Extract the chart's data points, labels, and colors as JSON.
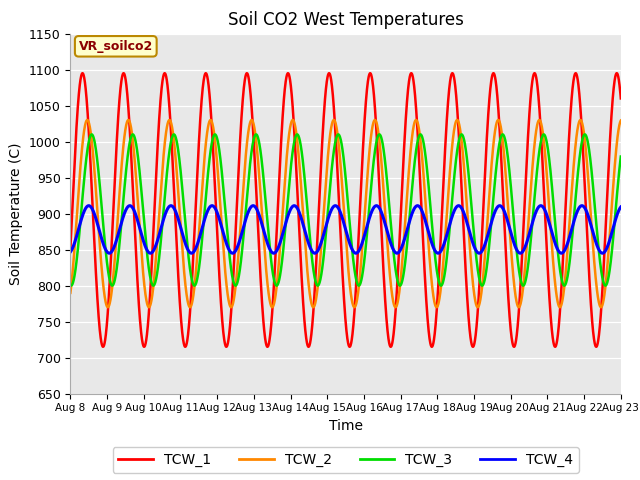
{
  "title": "Soil CO2 West Temperatures",
  "xlabel": "Time",
  "ylabel": "Soil Temperature (C)",
  "ylim": [
    650,
    1150
  ],
  "bg_color": "#e8e8e8",
  "annotation_text": "VR_soilco2",
  "annotation_bg": "#ffffcc",
  "annotation_border": "#bb8800",
  "xtick_labels": [
    "Aug 8",
    "Aug 9",
    "Aug 10",
    "Aug 11",
    "Aug 12",
    "Aug 13",
    "Aug 14",
    "Aug 15",
    "Aug 16",
    "Aug 17",
    "Aug 18",
    "Aug 19",
    "Aug 20",
    "Aug 21",
    "Aug 22",
    "Aug 23"
  ],
  "yticks": [
    650,
    700,
    750,
    800,
    850,
    900,
    950,
    1000,
    1050,
    1100,
    1150
  ],
  "series": [
    {
      "name": "TCW_1",
      "color": "#ff0000",
      "amplitude": 190,
      "mean": 905,
      "period": 1.12,
      "phase_days": 0.05,
      "lw": 1.8
    },
    {
      "name": "TCW_2",
      "color": "#ff8800",
      "amplitude": 130,
      "mean": 900,
      "period": 1.12,
      "phase_days": 0.18,
      "lw": 1.8
    },
    {
      "name": "TCW_3",
      "color": "#00dd00",
      "amplitude": 105,
      "mean": 905,
      "period": 1.12,
      "phase_days": 0.3,
      "lw": 1.8
    },
    {
      "name": "TCW_4",
      "color": "#0000ff",
      "amplitude": 33,
      "mean": 878,
      "period": 1.12,
      "phase_days": 0.22,
      "lw": 2.2
    }
  ],
  "legend_series": [
    "TCW_1",
    "TCW_2",
    "TCW_3",
    "TCW_4"
  ],
  "legend_colors": [
    "#ff0000",
    "#ff8800",
    "#00dd00",
    "#0000ff"
  ]
}
